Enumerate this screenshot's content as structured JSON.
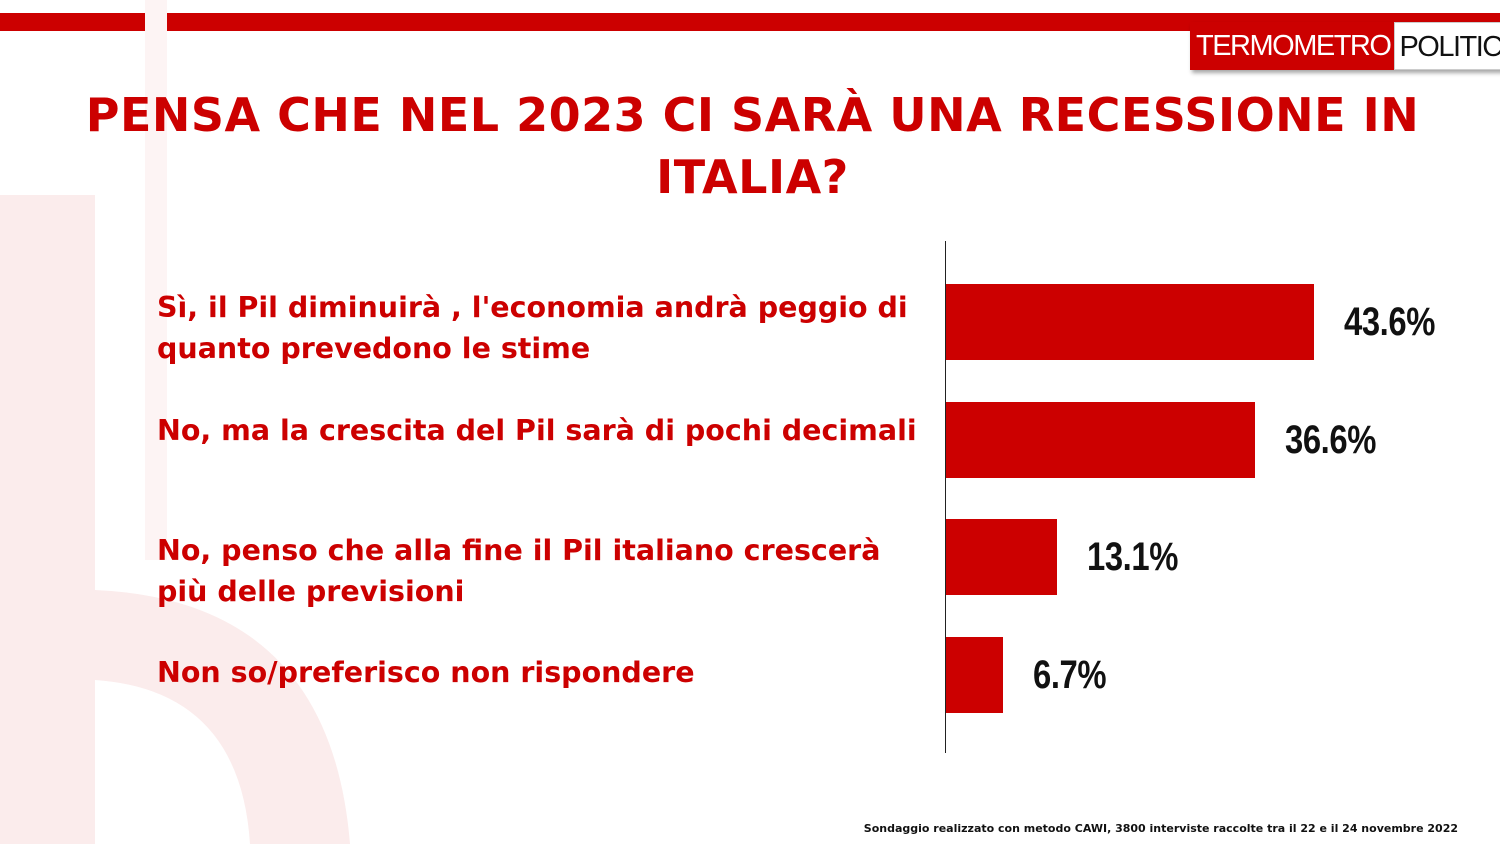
{
  "logo": {
    "part1": "TERMOMETRO",
    "part2": "POLITICO"
  },
  "title": "PENSA CHE NEL 2023 CI SARÀ UNA RECESSIONE IN ITALIA?",
  "footnote": "Sondaggio realizzato con metodo CAWI, 3800 interviste raccolte tra il 22 e il 24 novembre 2022",
  "colors": {
    "accent": "#cc0000",
    "text_dark": "#111111",
    "watermark": "#fbecec"
  },
  "chart_data": {
    "type": "bar",
    "orientation": "horizontal",
    "categories": [
      "Sì, il Pil diminuirà , l'economia andrà  peggio di quanto prevedono le stime",
      "No, ma la crescita del Pil sarà  di pochi decimali",
      "No, penso che alla fine il Pil italiano crescerà  più delle previsioni",
      "Non so/preferisco non rispondere"
    ],
    "values": [
      43.6,
      36.6,
      13.1,
      6.7
    ],
    "value_labels": [
      "43.6%",
      "36.6%",
      "13.1%",
      "6.7%"
    ],
    "unit": "%",
    "xlim": [
      0,
      100
    ],
    "grid": false,
    "legend": "none"
  }
}
